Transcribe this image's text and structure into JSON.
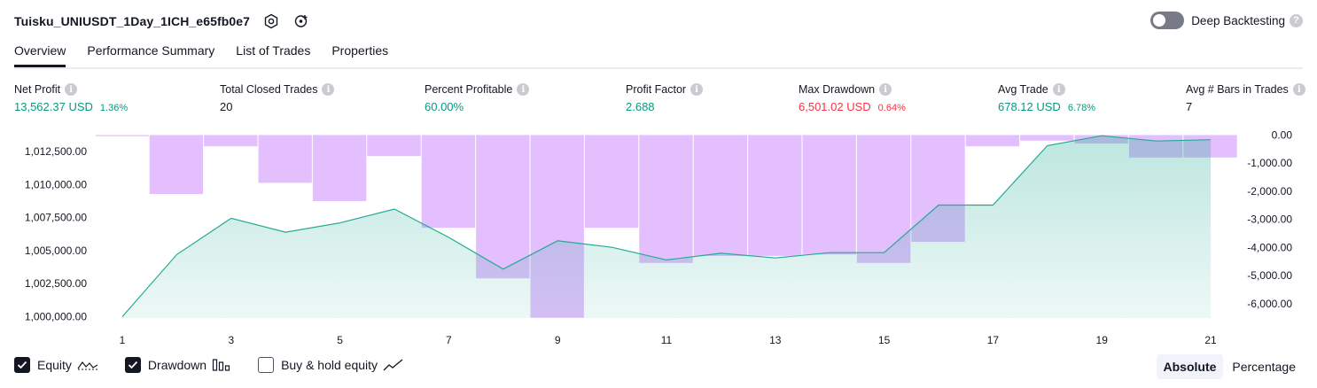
{
  "header": {
    "title": "Tuisku_UNIUSDT_1Day_1ICH_e65fb0e7",
    "deep_label": "Deep Backtesting",
    "help_glyph": "?"
  },
  "tabs": [
    {
      "label": "Overview"
    },
    {
      "label": "Performance Summary"
    },
    {
      "label": "List of Trades"
    },
    {
      "label": "Properties"
    }
  ],
  "metrics": [
    {
      "label": "Net Profit",
      "value": "13,562.37 USD",
      "pct": "1.36%",
      "color": "#089981"
    },
    {
      "label": "Total Closed Trades",
      "value": "20",
      "pct": "",
      "color": "#131722"
    },
    {
      "label": "Percent Profitable",
      "value": "60.00%",
      "pct": "",
      "color": "#089981"
    },
    {
      "label": "Profit Factor",
      "value": "2.688",
      "pct": "",
      "color": "#089981"
    },
    {
      "label": "Max Drawdown",
      "value": "6,501.02 USD",
      "pct": "0.64%",
      "color": "#f23645"
    },
    {
      "label": "Avg Trade",
      "value": "678.12 USD",
      "pct": "6.78%",
      "color": "#089981"
    },
    {
      "label": "Avg # Bars in Trades",
      "value": "7",
      "pct": "",
      "color": "#131722"
    }
  ],
  "info_glyph": "i",
  "chart_data": {
    "type": "area",
    "x": [
      1,
      2,
      3,
      4,
      5,
      6,
      7,
      8,
      9,
      10,
      11,
      12,
      13,
      14,
      15,
      16,
      17,
      18,
      19,
      20,
      21
    ],
    "x_ticks": [
      "1",
      "3",
      "5",
      "7",
      "9",
      "11",
      "13",
      "15",
      "17",
      "19",
      "21"
    ],
    "left_axis": {
      "ticks": [
        "1,000,000.00",
        "1,002,500.00",
        "1,005,000.00",
        "1,007,500.00",
        "1,010,000.00",
        "1,012,500.00"
      ],
      "tick_values": [
        1000000,
        1002500,
        1005000,
        1007500,
        1010000,
        1012500
      ],
      "range": [
        999900,
        1014050
      ]
    },
    "right_axis": {
      "ticks": [
        "0.00",
        "-1,000.00",
        "-2,000.00",
        "-3,000.00",
        "-4,000.00",
        "-5,000.00",
        "-6,000.00"
      ],
      "tick_values": [
        0,
        -1000,
        -2000,
        -3000,
        -4000,
        -5000,
        -6000
      ],
      "range": [
        -6510,
        140
      ]
    },
    "series": [
      {
        "name": "Equity",
        "color": "#22ab94",
        "values": [
          1000000,
          1004700,
          1007450,
          1006400,
          1007100,
          1008150,
          1006000,
          1003600,
          1005750,
          1005250,
          1004300,
          1004800,
          1004450,
          1004850,
          1004850,
          1008450,
          1008450,
          1012950,
          1013700,
          1013300,
          1013400
        ]
      },
      {
        "name": "Drawdown",
        "color": "#ce93fb",
        "values": [
          -40,
          -2100,
          -400,
          -1700,
          -2350,
          -750,
          -3300,
          -5100,
          -6500,
          -3300,
          -4550,
          -4300,
          -4300,
          -4250,
          -4550,
          -3800,
          -400,
          -200,
          -300,
          -800,
          -800
        ]
      }
    ]
  },
  "legend": [
    {
      "label": "Equity",
      "checked": true,
      "icon": "equity-line-icon"
    },
    {
      "label": "Drawdown",
      "checked": true,
      "icon": "drawdown-bars-icon"
    },
    {
      "label": "Buy & hold equity",
      "checked": false,
      "icon": "buy-hold-line-icon"
    }
  ],
  "mode_buttons": [
    {
      "label": "Absolute",
      "active": true
    },
    {
      "label": "Percentage",
      "active": false
    }
  ]
}
